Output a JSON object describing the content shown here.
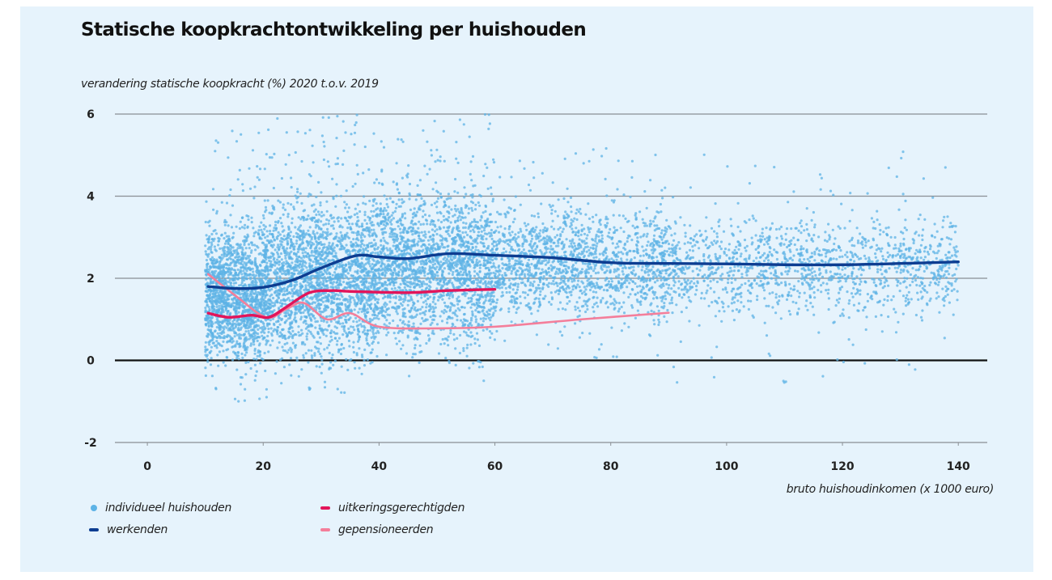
{
  "chart_data": {
    "type": "scatter",
    "title": "Statische koopkrachtontwikkeling per huishouden",
    "ylabel": "verandering statische koopkracht (%) 2020 t.o.v. 2019",
    "xlabel": "bruto huishoudinkomen (x 1000 euro)",
    "xlim": [
      -5.6,
      145
    ],
    "ylim": [
      -2,
      6
    ],
    "xticks": [
      0,
      20,
      40,
      60,
      80,
      100,
      120,
      140
    ],
    "yticks": [
      6,
      4,
      2,
      0,
      -2
    ],
    "xtick_labels": [
      "0",
      "20",
      "40",
      "60",
      "80",
      "100",
      "120",
      "140"
    ],
    "ytick_labels": [
      "6",
      "4",
      "2",
      "0",
      "-2"
    ],
    "grid": true,
    "legend_position": "bottom-left",
    "colors": {
      "background": "#e6f3fc",
      "scatter": "#5db3e6",
      "werkenden": "#0d3d91",
      "uitkeringsgerechtigden": "#e2155a",
      "gepensioneerden": "#f47e9a",
      "gridline": "#8a8f94",
      "zeroline": "#111111"
    },
    "scatter": {
      "name": "individueel huishouden",
      "point_count_approx": 9000,
      "x_range": [
        10,
        140
      ],
      "density_bands": [
        {
          "x": [
            10,
            20
          ],
          "y_center": 1.6,
          "y_spread": 1.4,
          "y_outlier_range": [
            -1.1,
            5.8
          ]
        },
        {
          "x": [
            20,
            40
          ],
          "y_center": 2.0,
          "y_spread": 1.6,
          "y_outlier_range": [
            -0.9,
            6.0
          ]
        },
        {
          "x": [
            40,
            60
          ],
          "y_center": 2.3,
          "y_spread": 1.6,
          "y_outlier_range": [
            -0.3,
            6.0
          ]
        },
        {
          "x": [
            60,
            90
          ],
          "y_center": 2.4,
          "y_spread": 1.2,
          "y_outlier_range": [
            0.0,
            5.2
          ]
        },
        {
          "x": [
            90,
            140
          ],
          "y_center": 2.3,
          "y_spread": 1.0,
          "y_outlier_range": [
            -0.7,
            5.1
          ]
        }
      ]
    },
    "series": [
      {
        "name": "werkenden",
        "type": "line",
        "x": [
          10.5,
          15,
          20,
          25,
          30,
          36,
          40,
          45,
          52,
          60,
          70,
          80,
          90,
          100,
          110,
          120,
          130,
          140
        ],
        "y": [
          1.8,
          1.75,
          1.78,
          1.95,
          2.25,
          2.55,
          2.52,
          2.48,
          2.6,
          2.56,
          2.5,
          2.38,
          2.36,
          2.35,
          2.33,
          2.33,
          2.36,
          2.4
        ]
      },
      {
        "name": "uitkeringsgerechtigden",
        "type": "line",
        "x": [
          10.5,
          14,
          18,
          21,
          24,
          28,
          32,
          35,
          45,
          52,
          60
        ],
        "y": [
          1.15,
          1.05,
          1.1,
          1.05,
          1.3,
          1.65,
          1.7,
          1.68,
          1.65,
          1.7,
          1.73
        ]
      },
      {
        "name": "gepensioneerden",
        "type": "line",
        "x": [
          10.5,
          15,
          20.5,
          24,
          27,
          31,
          35,
          40,
          50,
          60,
          75,
          90
        ],
        "y": [
          2.1,
          1.6,
          1.05,
          1.25,
          1.4,
          1.0,
          1.15,
          0.82,
          0.78,
          0.82,
          1.0,
          1.16
        ]
      }
    ]
  },
  "legend": {
    "items": [
      {
        "label": "individueel huishouden",
        "marker": "dot"
      },
      {
        "label": "uitkeringsgerechtigden",
        "marker": "line"
      },
      {
        "label": "werkenden",
        "marker": "line"
      },
      {
        "label": "gepensioneerden",
        "marker": "line"
      }
    ]
  }
}
